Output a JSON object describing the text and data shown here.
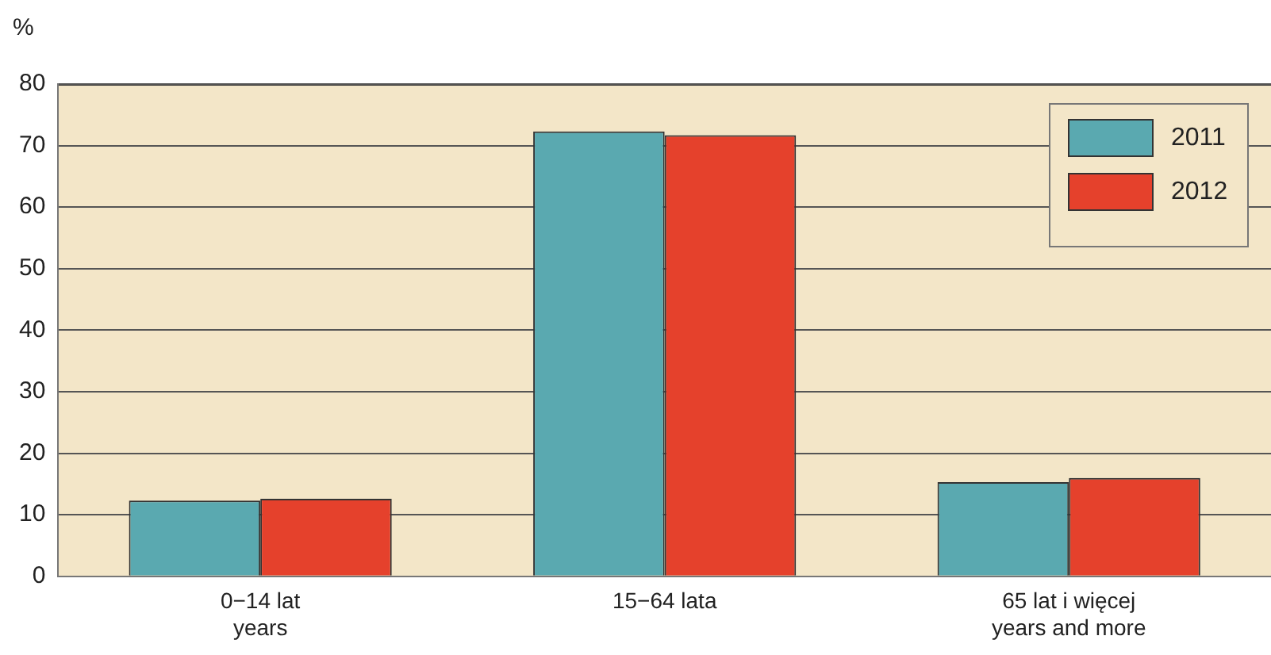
{
  "chart_data": {
    "type": "bar",
    "ylabel": "%",
    "categories": [
      "0−14 lat\nyears",
      "15−64 lata",
      "65 lat i więcej\nyears and more"
    ],
    "series": [
      {
        "name": "2011",
        "color": "#5aa9b0",
        "values": [
          12.3,
          72.3,
          15.3
        ]
      },
      {
        "name": "2012",
        "color": "#e5412c",
        "values": [
          12.6,
          71.7,
          16.0
        ]
      }
    ],
    "ylim": [
      0,
      80
    ],
    "yticks": [
      0,
      10,
      20,
      30,
      40,
      50,
      60,
      70,
      80
    ],
    "grid": "y",
    "legend": "top right"
  }
}
